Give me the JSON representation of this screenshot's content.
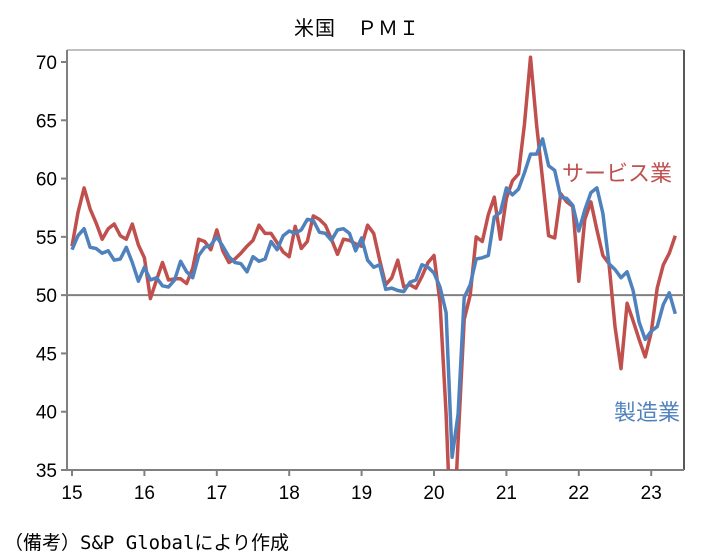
{
  "chart_data": {
    "type": "line",
    "title": "米国　ＰＭＩ",
    "note": "（備考）S&P Globalにより作成",
    "x_start": "2015-01",
    "x_frequency": "monthly",
    "x_tick_labels": [
      "15",
      "16",
      "17",
      "18",
      "19",
      "20",
      "21",
      "22",
      "23"
    ],
    "ylim": [
      35,
      70
    ],
    "y_ticks": [
      35,
      40,
      45,
      50,
      55,
      60,
      65,
      70
    ],
    "reference_line": 50,
    "grid": false,
    "series": [
      {
        "name": "サービス業",
        "color": "#c0504d",
        "values": [
          54.2,
          57.1,
          59.2,
          57.4,
          56.2,
          54.8,
          55.7,
          56.1,
          55.1,
          54.8,
          56.1,
          54.3,
          53.2,
          49.7,
          51.3,
          52.8,
          51.3,
          51.4,
          51.4,
          51.0,
          52.3,
          54.8,
          54.6,
          53.9,
          55.6,
          53.8,
          52.8,
          53.1,
          53.6,
          54.2,
          54.7,
          56.0,
          55.3,
          55.3,
          54.5,
          53.7,
          53.3,
          55.9,
          54.0,
          54.6,
          56.8,
          56.5,
          56.0,
          54.8,
          53.5,
          54.8,
          54.7,
          54.4,
          54.2,
          56.0,
          55.3,
          53.0,
          50.9,
          51.5,
          53.0,
          50.7,
          50.9,
          50.6,
          51.6,
          52.8,
          53.4,
          49.4,
          39.8,
          26.7,
          37.5,
          47.9,
          50.0,
          55.0,
          54.6,
          56.9,
          58.4,
          54.8,
          58.3,
          59.8,
          60.4,
          64.7,
          70.4,
          64.6,
          59.9,
          55.1,
          54.9,
          58.7,
          58.0,
          57.6,
          51.2,
          56.5,
          58.0,
          55.6,
          53.4,
          52.7,
          47.3,
          43.7,
          49.3,
          47.8,
          46.2,
          44.7,
          46.8,
          50.6,
          52.6,
          53.6,
          55.1
        ]
      },
      {
        "name": "製造業",
        "color": "#4f81bd",
        "values": [
          53.9,
          55.1,
          55.7,
          54.1,
          54.0,
          53.6,
          53.8,
          53.0,
          53.1,
          54.1,
          52.8,
          51.2,
          52.4,
          51.3,
          51.5,
          50.8,
          50.7,
          51.3,
          52.9,
          52.0,
          51.5,
          53.4,
          54.1,
          54.3,
          55.0,
          54.2,
          53.3,
          52.8,
          52.7,
          52.0,
          53.3,
          52.9,
          53.1,
          54.6,
          53.9,
          55.1,
          55.5,
          55.3,
          55.6,
          56.5,
          56.4,
          55.4,
          55.3,
          54.7,
          55.6,
          55.7,
          55.3,
          53.8,
          54.9,
          53.0,
          52.4,
          52.6,
          50.5,
          50.6,
          50.4,
          50.3,
          51.1,
          51.3,
          52.6,
          52.4,
          51.9,
          50.7,
          48.5,
          36.1,
          39.8,
          49.8,
          50.9,
          53.1,
          53.2,
          53.4,
          56.7,
          57.1,
          59.2,
          58.6,
          59.1,
          60.5,
          62.1,
          62.1,
          63.4,
          61.1,
          60.7,
          58.4,
          58.3,
          57.7,
          55.5,
          57.3,
          58.8,
          59.2,
          57.0,
          52.7,
          52.2,
          51.5,
          52.0,
          50.4,
          47.7,
          46.2,
          46.9,
          47.3,
          49.2,
          50.2,
          48.4
        ]
      }
    ]
  }
}
